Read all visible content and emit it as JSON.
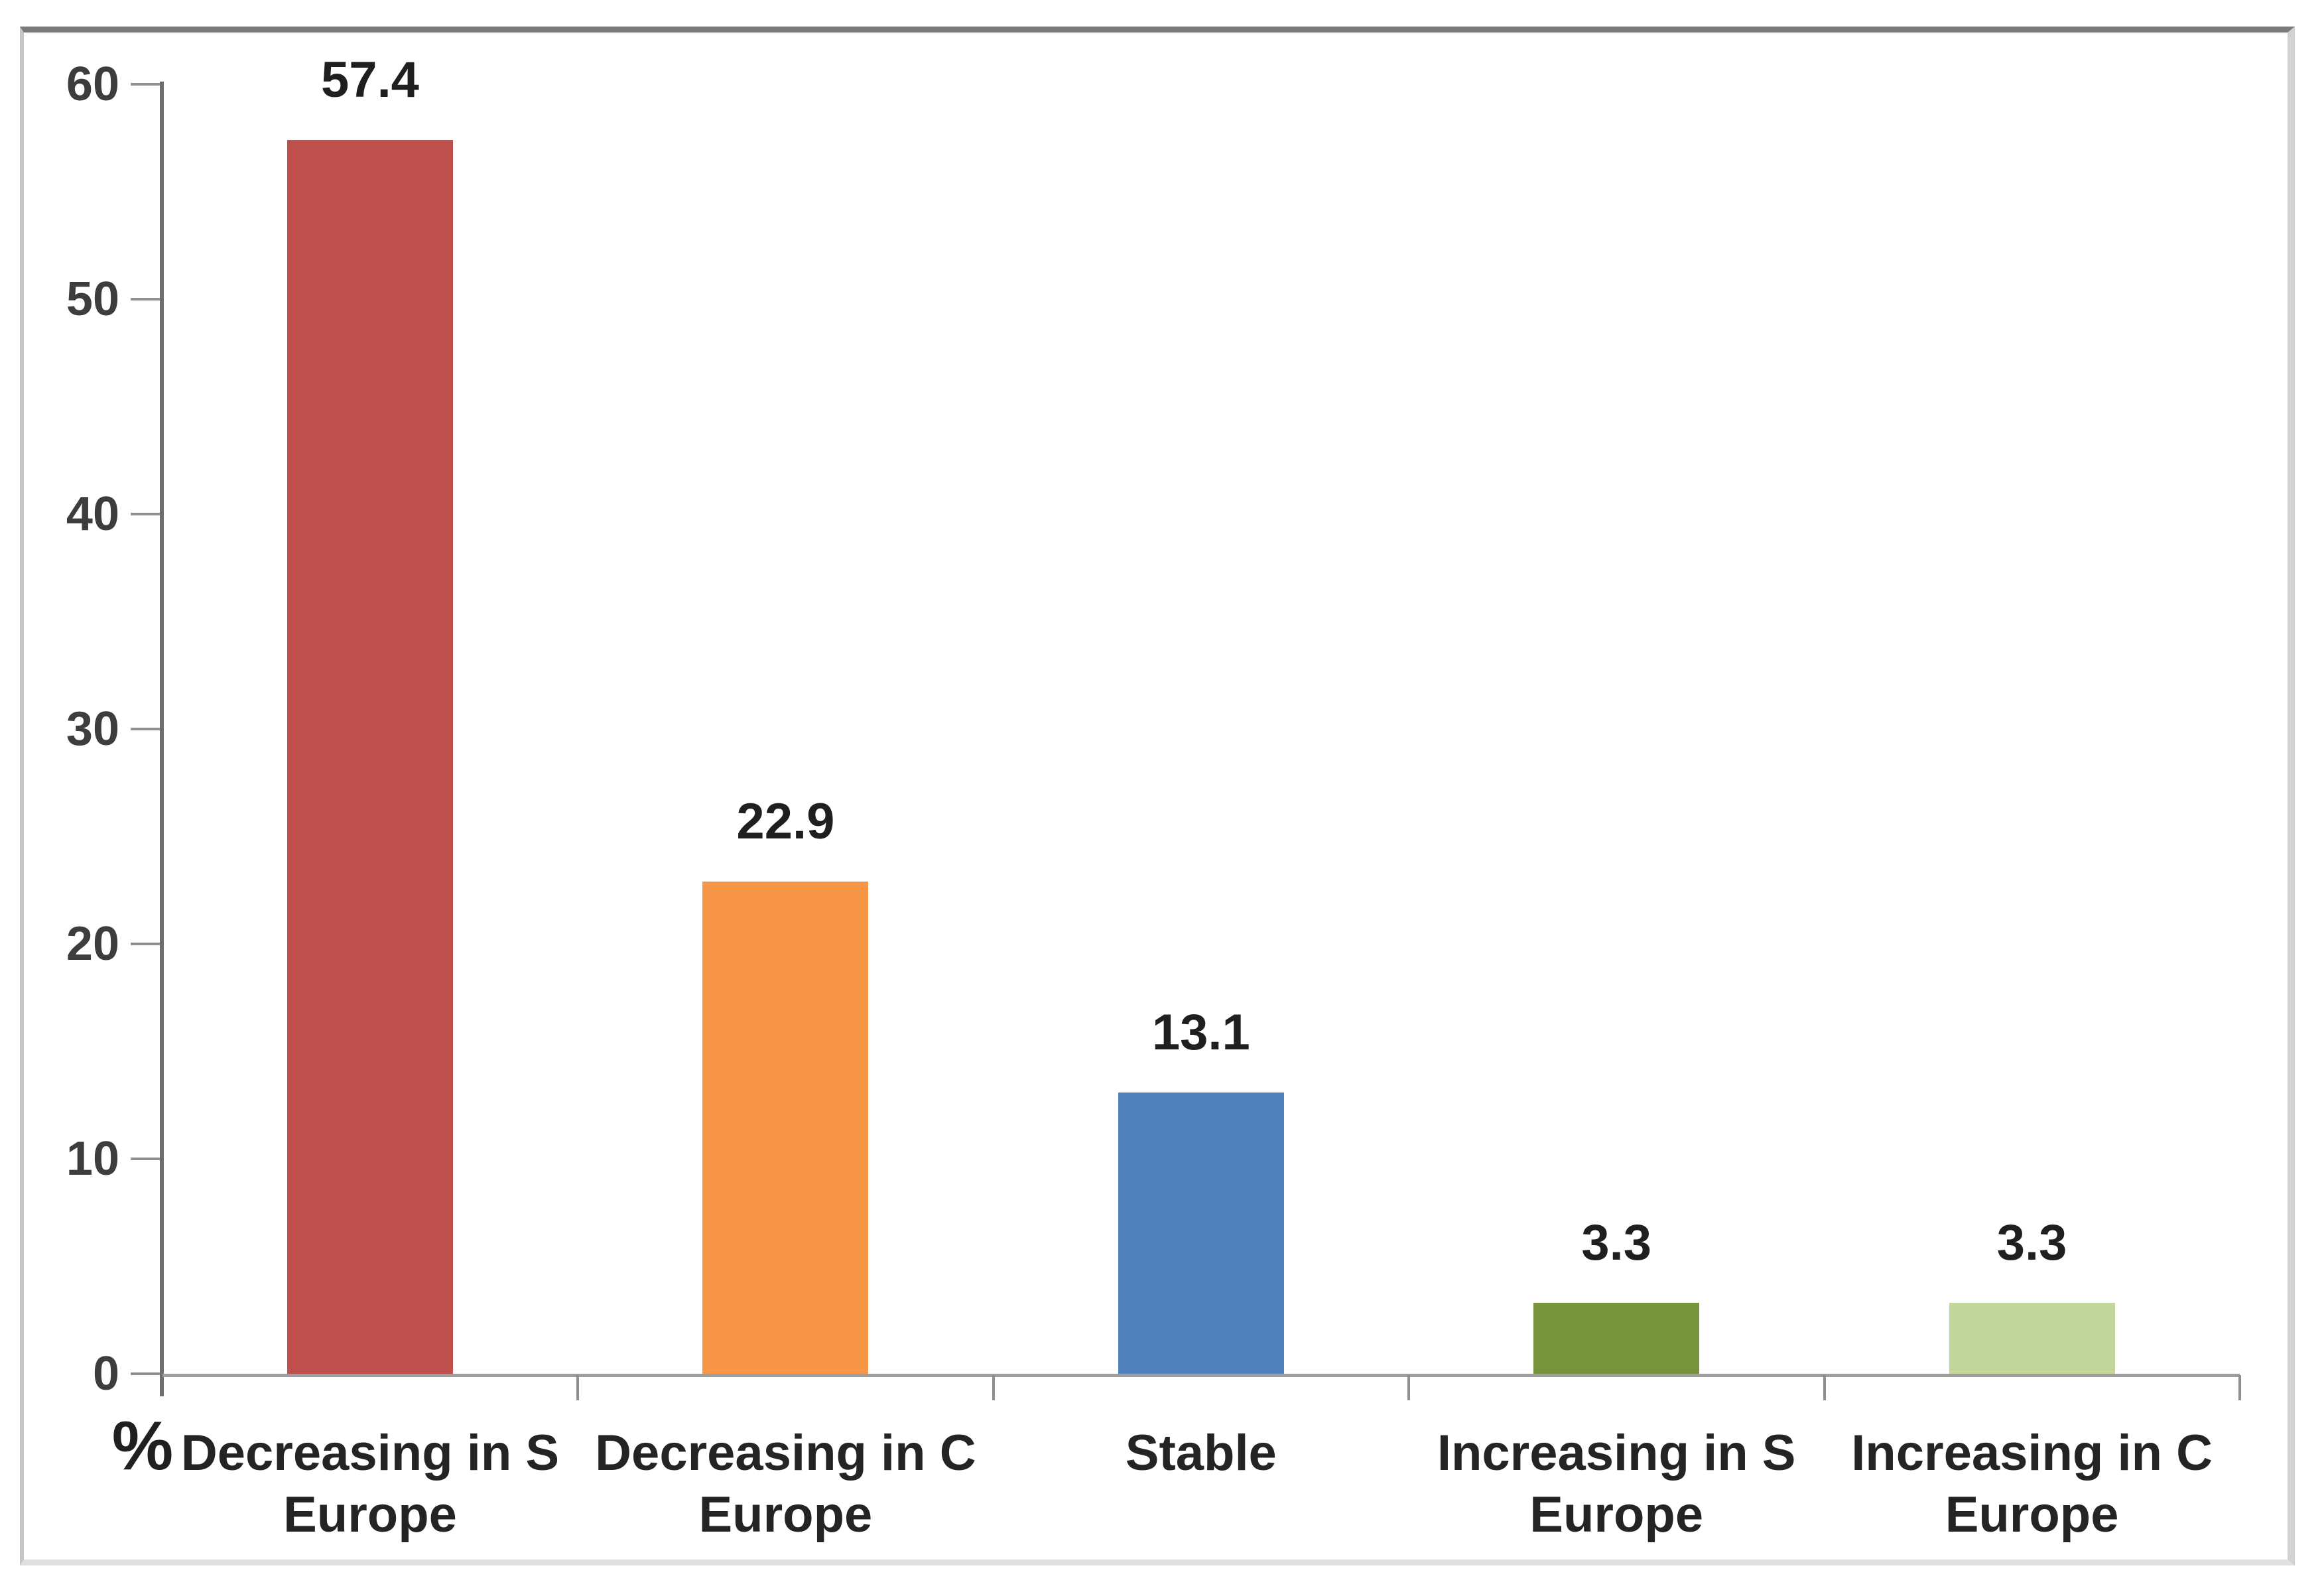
{
  "chart_data": {
    "type": "bar",
    "title": "",
    "categories": [
      "Decreasing in S Europe",
      "Decreasing in C Europe",
      "Stable",
      "Increasing in S Europe",
      "Increasing in C Europe"
    ],
    "values": [
      57.4,
      22.9,
      13.1,
      3.3,
      3.3
    ],
    "data_labels": [
      "57.4",
      "22.9",
      "13.1",
      "3.3",
      "3.3"
    ],
    "bar_colors": [
      "#c0504d",
      "#f79646",
      "#4f81bd",
      "#77933c",
      "#c3d69b"
    ],
    "ylabel": "%",
    "ylim": [
      0,
      60
    ],
    "yticks": [
      0,
      10,
      20,
      30,
      40,
      50,
      60
    ],
    "xlabel": "",
    "grid": false,
    "legend": false,
    "colors": {
      "y_axis_line": "#6e6e6e",
      "x_axis_line": "#9d9d9d",
      "tick_mark": "#8f8f8f",
      "tick_label_text": "#3d3d3d",
      "value_label_text": "#1f1f1f",
      "category_label_text": "#242424",
      "frame_border": "#7a7a7a",
      "background": "#ffffff"
    }
  }
}
